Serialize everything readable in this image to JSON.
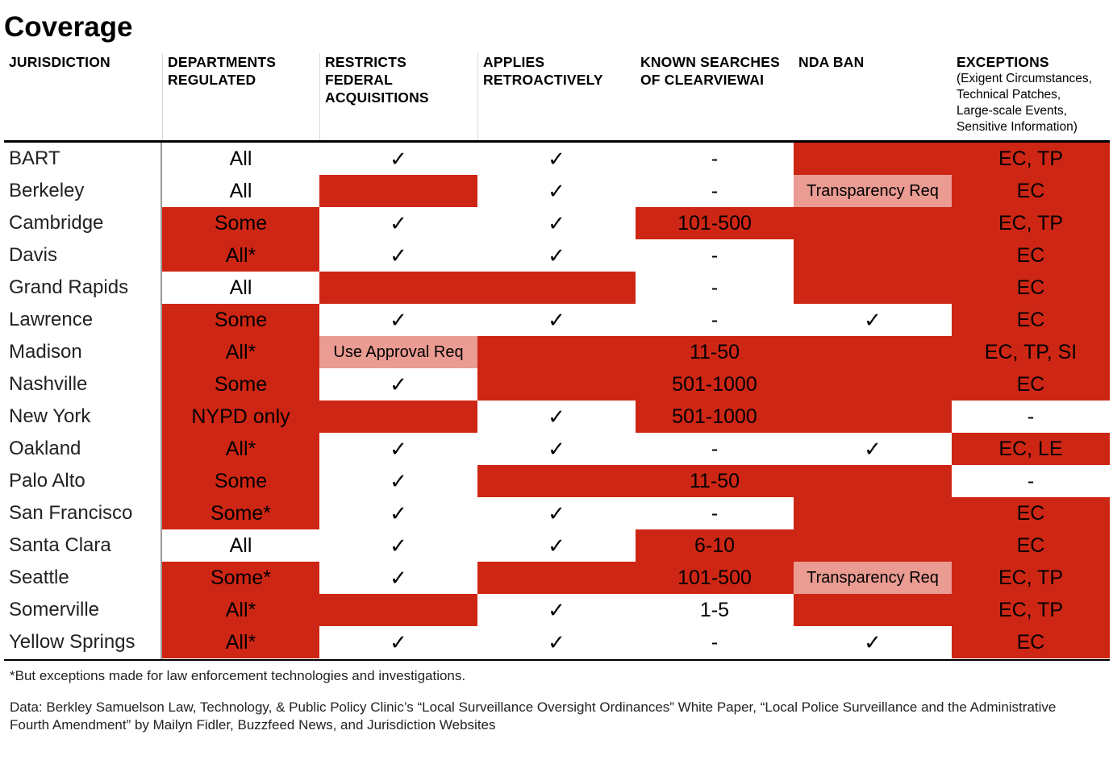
{
  "title": "Coverage",
  "headers": [
    {
      "lines": [
        "JURISDICTION"
      ],
      "sub": []
    },
    {
      "lines": [
        "DEPARTMENTS",
        "REGULATED"
      ],
      "sub": []
    },
    {
      "lines": [
        "RESTRICTS",
        "FEDERAL",
        "ACQUISITIONS"
      ],
      "sub": []
    },
    {
      "lines": [
        "APPLIES",
        "RETROACTIVELY"
      ],
      "sub": []
    },
    {
      "lines": [
        "KNOWN SEARCHES",
        "OF CLEARVIEWAI"
      ],
      "sub": []
    },
    {
      "lines": [
        "NDA BAN"
      ],
      "sub": []
    },
    {
      "lines": [
        "EXCEPTIONS"
      ],
      "sub": [
        "(Exigent Circumstances,",
        "Technical Patches,",
        "Large-scale Events,",
        "Sensitive Information)"
      ]
    }
  ],
  "colors": {
    "red": "#ce2614",
    "pink": "#ea9b92",
    "white": "#ffffff"
  },
  "rows": [
    {
      "name": "BART",
      "cells": [
        {
          "text": "All",
          "bg": "white"
        },
        {
          "text": "✓",
          "bg": "white"
        },
        {
          "text": "✓",
          "bg": "white"
        },
        {
          "text": "-",
          "bg": "white"
        },
        {
          "text": "",
          "bg": "red"
        },
        {
          "text": "EC, TP",
          "bg": "red"
        }
      ]
    },
    {
      "name": "Berkeley",
      "cells": [
        {
          "text": "All",
          "bg": "white"
        },
        {
          "text": "",
          "bg": "red"
        },
        {
          "text": "✓",
          "bg": "white"
        },
        {
          "text": "-",
          "bg": "white"
        },
        {
          "text": "Transparency Req",
          "bg": "pink"
        },
        {
          "text": "EC",
          "bg": "red"
        }
      ]
    },
    {
      "name": "Cambridge",
      "cells": [
        {
          "text": "Some",
          "bg": "red"
        },
        {
          "text": "✓",
          "bg": "white"
        },
        {
          "text": "✓",
          "bg": "white"
        },
        {
          "text": "101-500",
          "bg": "red"
        },
        {
          "text": "",
          "bg": "red"
        },
        {
          "text": "EC, TP",
          "bg": "red"
        }
      ]
    },
    {
      "name": "Davis",
      "cells": [
        {
          "text": "All*",
          "bg": "red"
        },
        {
          "text": "✓",
          "bg": "white"
        },
        {
          "text": "✓",
          "bg": "white"
        },
        {
          "text": "-",
          "bg": "white"
        },
        {
          "text": "",
          "bg": "red"
        },
        {
          "text": "EC",
          "bg": "red"
        }
      ]
    },
    {
      "name": "Grand Rapids",
      "cells": [
        {
          "text": "All",
          "bg": "white"
        },
        {
          "text": "",
          "bg": "red"
        },
        {
          "text": "",
          "bg": "red"
        },
        {
          "text": "-",
          "bg": "white"
        },
        {
          "text": "",
          "bg": "red"
        },
        {
          "text": "EC",
          "bg": "red"
        }
      ]
    },
    {
      "name": "Lawrence",
      "cells": [
        {
          "text": "Some",
          "bg": "red"
        },
        {
          "text": "✓",
          "bg": "white"
        },
        {
          "text": "✓",
          "bg": "white"
        },
        {
          "text": "-",
          "bg": "white"
        },
        {
          "text": "✓",
          "bg": "white"
        },
        {
          "text": "EC",
          "bg": "red"
        }
      ]
    },
    {
      "name": "Madison",
      "cells": [
        {
          "text": "All*",
          "bg": "red"
        },
        {
          "text": "Use Approval Req",
          "bg": "pink"
        },
        {
          "text": "",
          "bg": "red"
        },
        {
          "text": "11-50",
          "bg": "red"
        },
        {
          "text": "",
          "bg": "red"
        },
        {
          "text": "EC, TP, SI",
          "bg": "red"
        }
      ]
    },
    {
      "name": "Nashville",
      "cells": [
        {
          "text": "Some",
          "bg": "red"
        },
        {
          "text": "✓",
          "bg": "white"
        },
        {
          "text": "",
          "bg": "red"
        },
        {
          "text": "501-1000",
          "bg": "red"
        },
        {
          "text": "",
          "bg": "red"
        },
        {
          "text": "EC",
          "bg": "red"
        }
      ]
    },
    {
      "name": "New York",
      "cells": [
        {
          "text": "NYPD only",
          "bg": "red"
        },
        {
          "text": "",
          "bg": "red"
        },
        {
          "text": "✓",
          "bg": "white"
        },
        {
          "text": "501-1000",
          "bg": "red"
        },
        {
          "text": "",
          "bg": "red"
        },
        {
          "text": "-",
          "bg": "white"
        }
      ]
    },
    {
      "name": "Oakland",
      "cells": [
        {
          "text": "All*",
          "bg": "red"
        },
        {
          "text": "✓",
          "bg": "white"
        },
        {
          "text": "✓",
          "bg": "white"
        },
        {
          "text": "-",
          "bg": "white"
        },
        {
          "text": "✓",
          "bg": "white"
        },
        {
          "text": "EC, LE",
          "bg": "red"
        }
      ]
    },
    {
      "name": "Palo Alto",
      "cells": [
        {
          "text": "Some",
          "bg": "red"
        },
        {
          "text": "✓",
          "bg": "white"
        },
        {
          "text": "",
          "bg": "red"
        },
        {
          "text": "11-50",
          "bg": "red"
        },
        {
          "text": "",
          "bg": "red"
        },
        {
          "text": "-",
          "bg": "white"
        }
      ]
    },
    {
      "name": "San Francisco",
      "cells": [
        {
          "text": "Some*",
          "bg": "red"
        },
        {
          "text": "✓",
          "bg": "white"
        },
        {
          "text": "✓",
          "bg": "white"
        },
        {
          "text": "-",
          "bg": "white"
        },
        {
          "text": "",
          "bg": "red"
        },
        {
          "text": "EC",
          "bg": "red"
        }
      ]
    },
    {
      "name": "Santa Clara",
      "cells": [
        {
          "text": "All",
          "bg": "white"
        },
        {
          "text": "✓",
          "bg": "white"
        },
        {
          "text": "✓",
          "bg": "white"
        },
        {
          "text": "6-10",
          "bg": "red"
        },
        {
          "text": "",
          "bg": "red"
        },
        {
          "text": "EC",
          "bg": "red"
        }
      ]
    },
    {
      "name": "Seattle",
      "cells": [
        {
          "text": "Some*",
          "bg": "red"
        },
        {
          "text": "✓",
          "bg": "white"
        },
        {
          "text": "",
          "bg": "red"
        },
        {
          "text": "101-500",
          "bg": "red"
        },
        {
          "text": "Transparency Req",
          "bg": "pink"
        },
        {
          "text": "EC, TP",
          "bg": "red"
        }
      ]
    },
    {
      "name": "Somerville",
      "cells": [
        {
          "text": "All*",
          "bg": "red"
        },
        {
          "text": "",
          "bg": "red"
        },
        {
          "text": "✓",
          "bg": "white"
        },
        {
          "text": "1-5",
          "bg": "white"
        },
        {
          "text": "",
          "bg": "red"
        },
        {
          "text": "EC, TP",
          "bg": "red"
        }
      ]
    },
    {
      "name": "Yellow Springs",
      "cells": [
        {
          "text": "All*",
          "bg": "red"
        },
        {
          "text": "✓",
          "bg": "white"
        },
        {
          "text": "✓",
          "bg": "white"
        },
        {
          "text": "-",
          "bg": "white"
        },
        {
          "text": "✓",
          "bg": "white"
        },
        {
          "text": "EC",
          "bg": "red"
        }
      ]
    }
  ],
  "footnote": "*But exceptions made for law enforcement technologies and investigations.",
  "source": "Data: Berkley Samuelson Law, Technology, & Public Policy Clinic’s “Local Surveillance Oversight Ordinances” White Paper, “Local Police Surveillance and the Administrative Fourth Amendment” by Mailyn Fidler, Buzzfeed News, and Jurisdiction Websites"
}
